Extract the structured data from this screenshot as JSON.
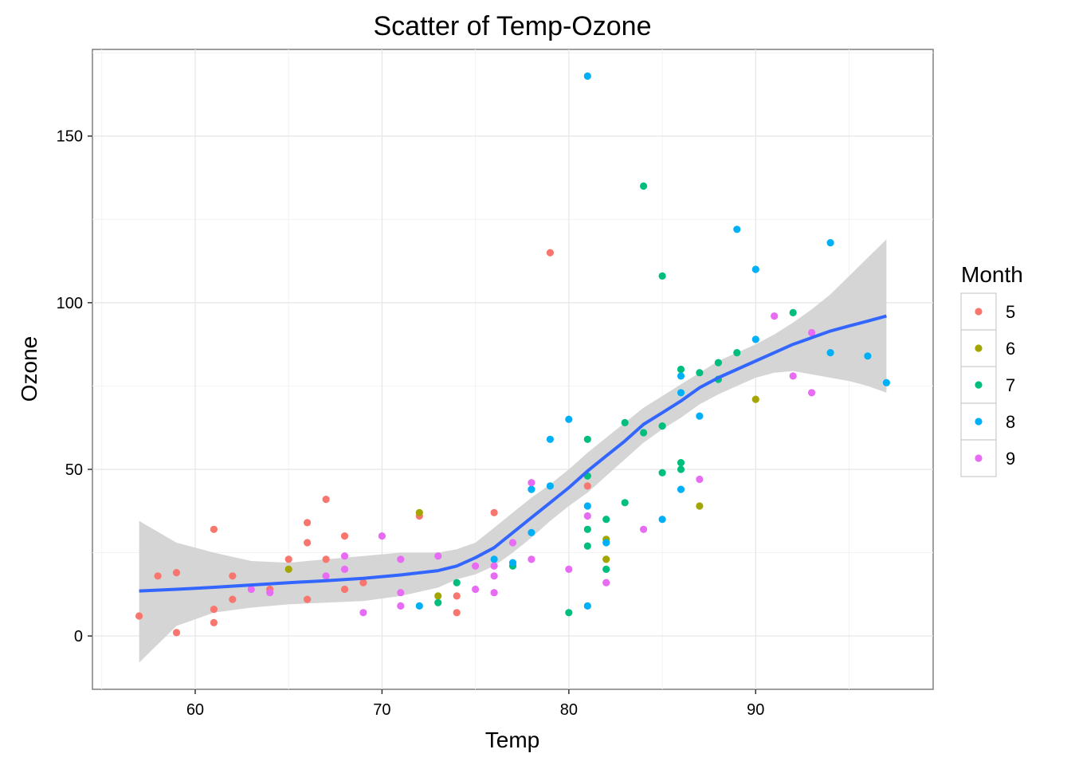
{
  "chart_data": {
    "type": "scatter",
    "title": "Scatter of Temp-Ozone",
    "xlabel": "Temp",
    "ylabel": "Ozone",
    "xlim": [
      54.5,
      99.5
    ],
    "ylim": [
      -16,
      176
    ],
    "xticks": [
      60,
      70,
      80,
      90
    ],
    "yticks": [
      0,
      50,
      100,
      150
    ],
    "grid": true,
    "legend": {
      "title": "Month",
      "position": "right"
    },
    "series": [
      {
        "name": "5",
        "color": "#F8766D",
        "points": [
          [
            57,
            6
          ],
          [
            58,
            18
          ],
          [
            59,
            19
          ],
          [
            59,
            1
          ],
          [
            61,
            32
          ],
          [
            61,
            8
          ],
          [
            61,
            4
          ],
          [
            62,
            18
          ],
          [
            62,
            11
          ],
          [
            64,
            14
          ],
          [
            65,
            23
          ],
          [
            66,
            34
          ],
          [
            66,
            28
          ],
          [
            66,
            11
          ],
          [
            67,
            41
          ],
          [
            67,
            23
          ],
          [
            68,
            30
          ],
          [
            68,
            14
          ],
          [
            69,
            16
          ],
          [
            72,
            36
          ],
          [
            74,
            12
          ],
          [
            74,
            7
          ],
          [
            76,
            37
          ],
          [
            79,
            115
          ],
          [
            81,
            45
          ]
        ]
      },
      {
        "name": "6",
        "color": "#A3A500",
        "points": [
          [
            65,
            20
          ],
          [
            72,
            37
          ],
          [
            73,
            12
          ],
          [
            82,
            29
          ],
          [
            82,
            23
          ],
          [
            87,
            39
          ],
          [
            90,
            71
          ]
        ]
      },
      {
        "name": "7",
        "color": "#00BF7D",
        "points": [
          [
            73,
            10
          ],
          [
            74,
            16
          ],
          [
            77,
            21
          ],
          [
            80,
            7
          ],
          [
            81,
            59
          ],
          [
            81,
            48
          ],
          [
            81,
            32
          ],
          [
            81,
            27
          ],
          [
            82,
            35
          ],
          [
            82,
            20
          ],
          [
            83,
            64
          ],
          [
            83,
            40
          ],
          [
            84,
            135
          ],
          [
            84,
            61
          ],
          [
            85,
            108
          ],
          [
            85,
            63
          ],
          [
            85,
            49
          ],
          [
            86,
            80
          ],
          [
            86,
            52
          ],
          [
            86,
            50
          ],
          [
            87,
            79
          ],
          [
            88,
            82
          ],
          [
            88,
            77
          ],
          [
            89,
            85
          ],
          [
            92,
            97
          ]
        ]
      },
      {
        "name": "8",
        "color": "#00B0F6",
        "points": [
          [
            72,
            9
          ],
          [
            76,
            23
          ],
          [
            77,
            22
          ],
          [
            78,
            44
          ],
          [
            78,
            31
          ],
          [
            79,
            59
          ],
          [
            79,
            45
          ],
          [
            80,
            65
          ],
          [
            81,
            168
          ],
          [
            81,
            39
          ],
          [
            81,
            9
          ],
          [
            82,
            28
          ],
          [
            86,
            78
          ],
          [
            86,
            73
          ],
          [
            86,
            44
          ],
          [
            85,
            35
          ],
          [
            87,
            66
          ],
          [
            89,
            122
          ],
          [
            90,
            110
          ],
          [
            90,
            89
          ],
          [
            94,
            118
          ],
          [
            94,
            85
          ],
          [
            96,
            84
          ],
          [
            97,
            76
          ]
        ]
      },
      {
        "name": "9",
        "color": "#E76BF3",
        "points": [
          [
            63,
            14
          ],
          [
            64,
            13
          ],
          [
            67,
            18
          ],
          [
            68,
            24
          ],
          [
            68,
            20
          ],
          [
            69,
            7
          ],
          [
            70,
            30
          ],
          [
            71,
            23
          ],
          [
            71,
            13
          ],
          [
            71,
            9
          ],
          [
            73,
            24
          ],
          [
            75,
            21
          ],
          [
            75,
            14
          ],
          [
            76,
            21
          ],
          [
            76,
            18
          ],
          [
            76,
            13
          ],
          [
            77,
            28
          ],
          [
            78,
            46
          ],
          [
            78,
            23
          ],
          [
            80,
            20
          ],
          [
            81,
            36
          ],
          [
            82,
            16
          ],
          [
            84,
            32
          ],
          [
            87,
            47
          ],
          [
            91,
            96
          ],
          [
            92,
            78
          ],
          [
            93,
            91
          ],
          [
            93,
            73
          ]
        ]
      }
    ],
    "smooth": {
      "color": "#3366FF",
      "band_color": "#D3D3D3",
      "x": [
        57,
        59,
        61,
        63,
        65,
        67,
        69,
        71,
        73,
        74,
        75,
        76,
        77,
        78,
        79,
        80,
        81,
        82,
        83,
        84,
        85,
        86,
        87,
        88,
        89,
        90,
        91,
        92,
        93,
        94,
        95,
        96,
        97
      ],
      "y": [
        13.5,
        14.0,
        14.6,
        15.3,
        16.0,
        16.6,
        17.3,
        18.3,
        19.6,
        21.0,
        23.5,
        26.5,
        31.0,
        35.5,
        40.0,
        44.5,
        49.5,
        54.0,
        58.5,
        63.5,
        67.0,
        70.5,
        74.5,
        77.5,
        80.0,
        82.5,
        85.0,
        87.5,
        89.5,
        91.5,
        93.0,
        94.5,
        96.0
      ],
      "lower": [
        -8,
        3,
        7,
        8.5,
        9.5,
        10,
        10.5,
        12,
        14.5,
        17,
        18.5,
        21,
        25,
        29.5,
        34.5,
        39,
        43,
        48,
        53,
        58,
        62,
        65.5,
        69.5,
        72.5,
        75,
        77.5,
        79,
        79.5,
        78.5,
        77.5,
        76.5,
        75,
        73
      ],
      "upper": [
        34.5,
        28,
        25,
        22.5,
        22,
        23,
        24,
        25,
        25,
        26,
        28,
        32.5,
        37,
        41.5,
        45.5,
        50,
        55,
        59.5,
        64,
        68.5,
        72,
        75.5,
        79,
        82.5,
        85,
        87.5,
        90.5,
        94,
        98,
        102.5,
        108,
        113.5,
        119
      ]
    }
  }
}
